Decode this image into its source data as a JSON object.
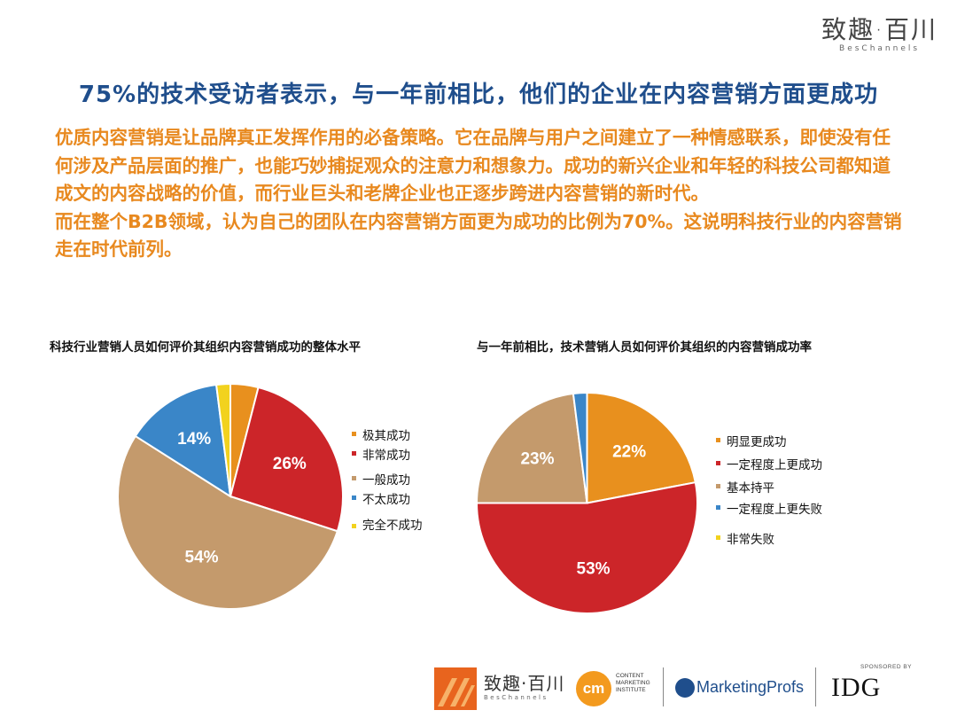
{
  "brand": {
    "name_cn": "致趣·百川",
    "name_en": "BesChannels"
  },
  "headline": "75%的技术受访者表示，与一年前相比，他们的企业在内容营销方面更成功",
  "body": {
    "para1": "优质内容营销是让品牌真正发挥作用的必备策略。它在品牌与用户之间建立了一种情感联系，即使没有任何涉及产品层面的推广，也能巧妙捕捉观众的注意力和想象力。成功的新兴企业和年轻的科技公司都知道成文的内容战略的价值，而行业巨头和老牌企业也正逐步跨进内容营销的新时代。",
    "para2": "而在整个B2B领域，认为自己的团队在内容营销方面更为成功的比例为70%。这说明科技行业的内容营销走在时代前列。"
  },
  "chart_data": [
    {
      "type": "pie",
      "title": "科技行业营销人员如何评价其组织内容营销成功的整体水平",
      "labels": [
        "极其成功",
        "非常成功",
        "一般成功",
        "不太成功",
        "完全不成功"
      ],
      "values": [
        4,
        26,
        54,
        14,
        2
      ],
      "colors": [
        "#e8901e",
        "#cc2529",
        "#c49a6c",
        "#3a86c8",
        "#f2d21e"
      ],
      "legend_position": "right",
      "data_labels": [
        "4%",
        "26%",
        "54%",
        "14%",
        "2%"
      ]
    },
    {
      "type": "pie",
      "title": "与一年前相比，技术营销人员如何评价其组织的内容营销成功率",
      "labels": [
        "明显更成功",
        "一定程度上更成功",
        "基本持平",
        "一定程度上更失败",
        "非常失败"
      ],
      "values": [
        22,
        53,
        23,
        2,
        0
      ],
      "colors": [
        "#e8901e",
        "#cc2529",
        "#c49a6c",
        "#3a86c8",
        "#f2d21e"
      ],
      "legend_position": "right",
      "data_labels": [
        "22%",
        "53%",
        "23%",
        "2%",
        "0%"
      ]
    }
  ],
  "footer": {
    "cmi_mark": "cm",
    "cmi_text": [
      "CONTENT",
      "MARKETING",
      "INSTITUTE"
    ],
    "marketingprofs": "MarketingProfs",
    "sponsored": "SPONSORED BY",
    "idg": "IDG"
  }
}
